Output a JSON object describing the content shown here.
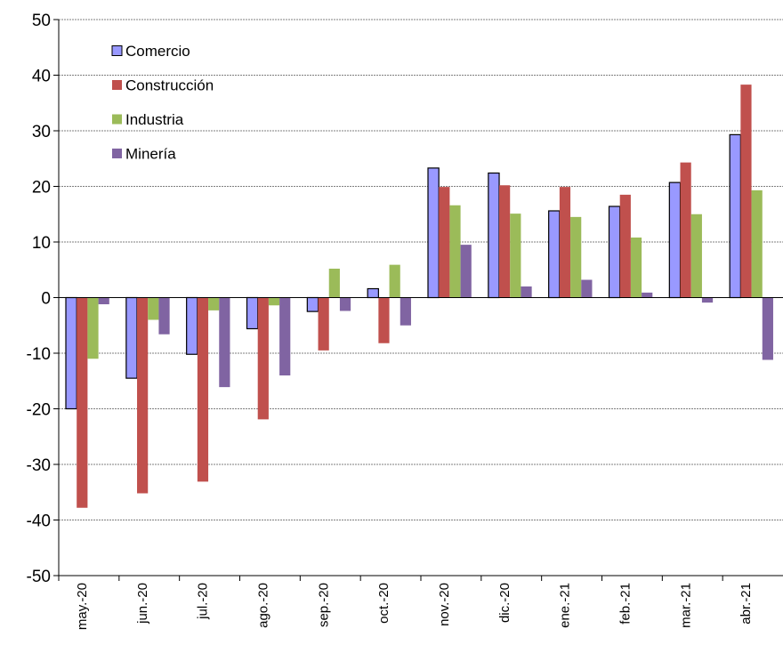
{
  "chart_data": {
    "type": "bar",
    "title": "",
    "xlabel": "",
    "ylabel": "",
    "ylim": [
      -50,
      50
    ],
    "yticks": [
      -50,
      -40,
      -30,
      -20,
      -10,
      0,
      10,
      20,
      30,
      40,
      50
    ],
    "grid": true,
    "legend_position": "top-left",
    "categories": [
      "may.-20",
      "jun.-20",
      "jul.-20",
      "ago.-20",
      "sep.-20",
      "oct.-20",
      "nov.-20",
      "dic.-20",
      "ene.-21",
      "feb.-21",
      "mar.-21",
      "abr.-21"
    ],
    "series": [
      {
        "name": "Comercio",
        "color": "#9999ff",
        "outline": "#000000",
        "values": [
          -20.0,
          -14.5,
          -10.2,
          -5.6,
          -2.5,
          1.6,
          23.3,
          22.4,
          15.6,
          16.4,
          20.7,
          29.3
        ]
      },
      {
        "name": "Construcción",
        "color": "#c0504d",
        "outline": "",
        "values": [
          -37.8,
          -35.2,
          -33.1,
          -21.9,
          -9.5,
          -8.2,
          19.9,
          20.2,
          19.9,
          18.5,
          24.3,
          38.3
        ]
      },
      {
        "name": "Industria",
        "color": "#9bbb59",
        "outline": "",
        "values": [
          -11.0,
          -4.0,
          -2.3,
          -1.4,
          5.2,
          5.9,
          16.6,
          15.1,
          14.5,
          10.8,
          15.0,
          19.3
        ]
      },
      {
        "name": "Minería",
        "color": "#8064a2",
        "outline": "",
        "values": [
          -1.2,
          -6.6,
          -16.1,
          -14.0,
          -2.4,
          -5.0,
          9.5,
          2.0,
          3.2,
          0.9,
          -0.9,
          -11.2
        ]
      }
    ]
  }
}
